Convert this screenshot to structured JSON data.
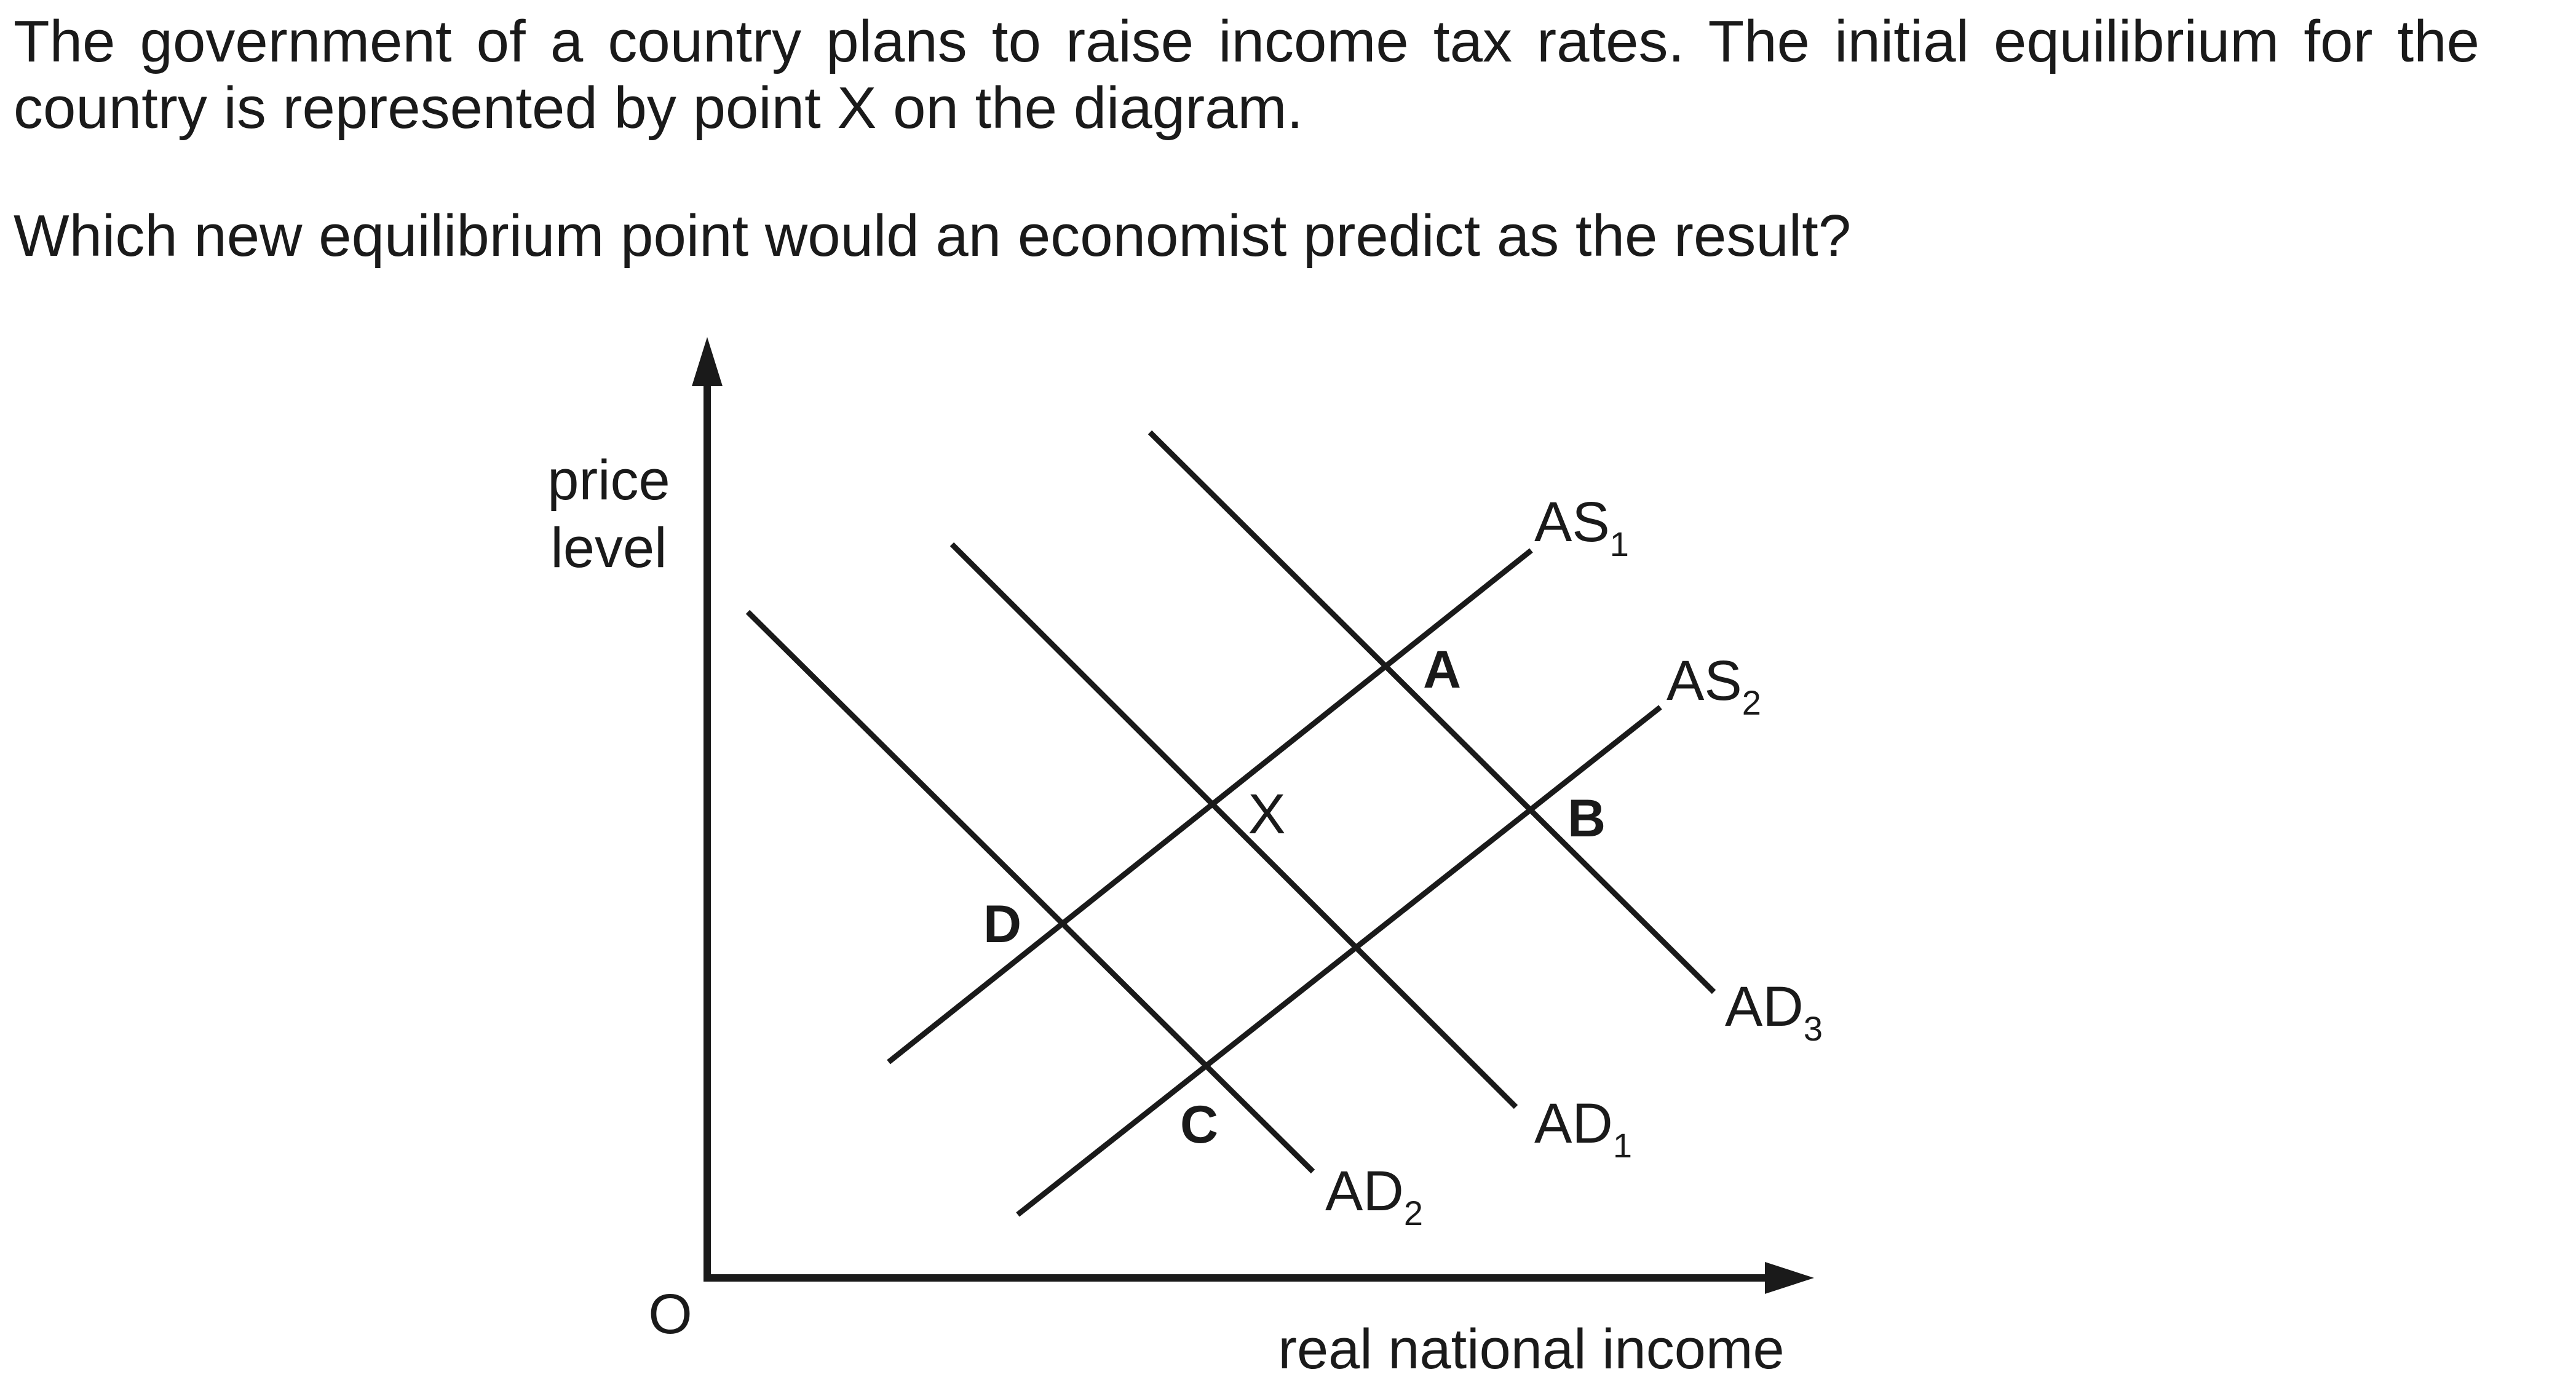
{
  "question": {
    "line1": "The government of a country plans to raise income tax rates. The initial equilibrium for the country is represented by point X on the diagram.",
    "line2": "Which new equilibrium point would an economist predict as the result?"
  },
  "diagram": {
    "y_axis_label": [
      "price",
      "level"
    ],
    "x_axis_label": "real national income",
    "origin_label": "O",
    "curves": {
      "AS1": {
        "main": "AS",
        "sub": "1"
      },
      "AS2": {
        "main": "AS",
        "sub": "2"
      },
      "AD1": {
        "main": "AD",
        "sub": "1"
      },
      "AD2": {
        "main": "AD",
        "sub": "2"
      },
      "AD3": {
        "main": "AD",
        "sub": "3"
      }
    },
    "points": {
      "A": "A",
      "B": "B",
      "C": "C",
      "D": "D",
      "X": "X"
    }
  }
}
